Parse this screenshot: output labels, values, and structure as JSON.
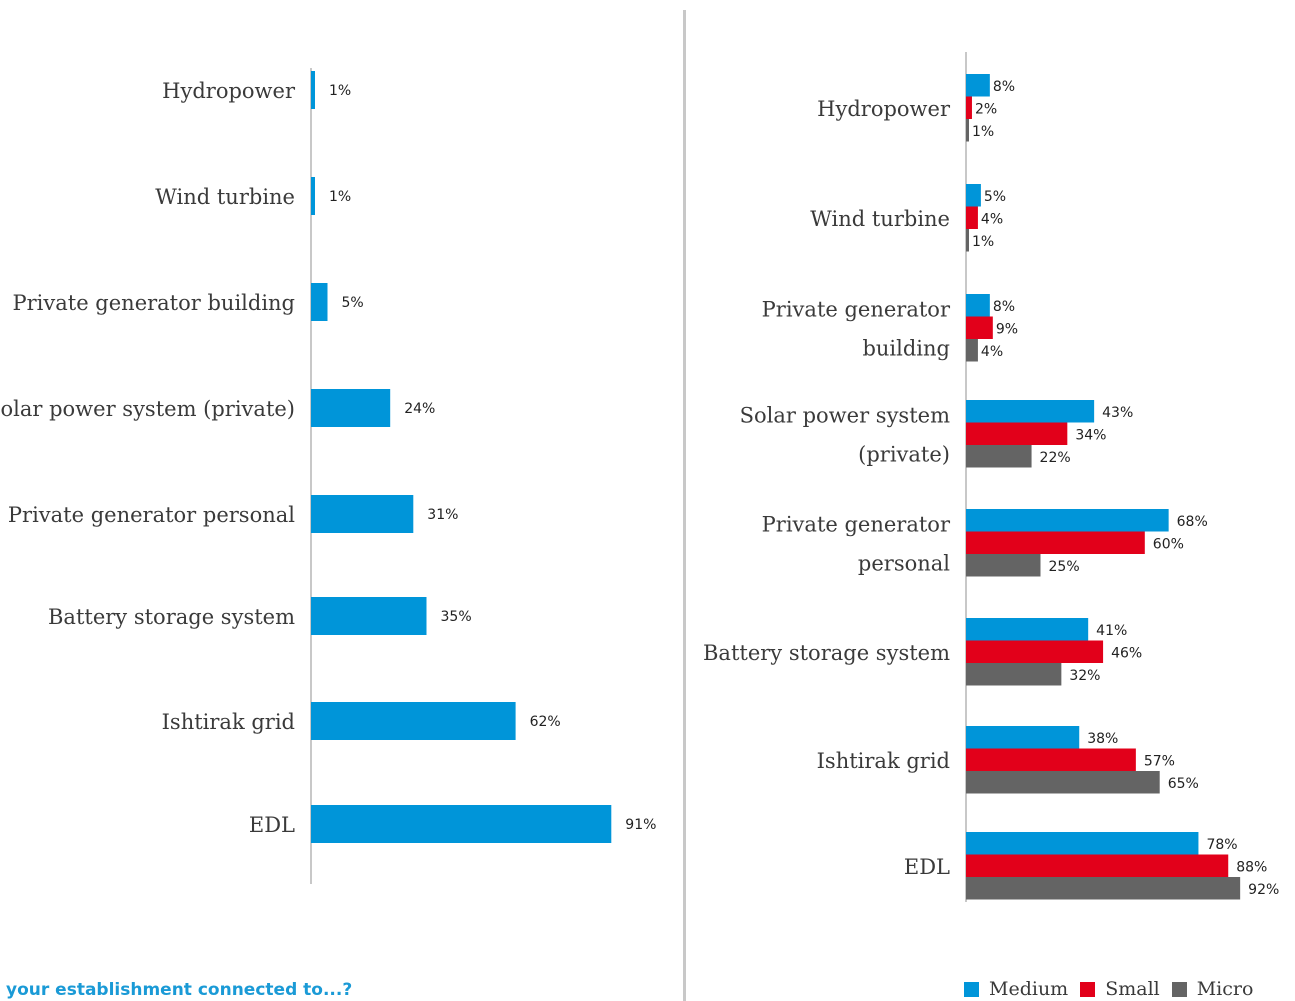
{
  "caption": "your establishment connected to...?",
  "colors": {
    "medium": "#0095d9",
    "small": "#e2001a",
    "micro": "#646464",
    "axis": "#c8c8c8"
  },
  "chart_data": [
    {
      "type": "bar",
      "orientation": "horizontal",
      "categories": [
        "Hydropower",
        "Wind turbine",
        "Private generator building",
        "Solar power system (private)",
        "Private generator personal",
        "Battery storage system",
        "Ishtirak grid",
        "EDL"
      ],
      "display_labels": [
        [
          "Hydropower"
        ],
        [
          "Wind turbine"
        ],
        [
          "Private generator building"
        ],
        [
          "Solar power system (private)"
        ],
        [
          "Private generator personal"
        ],
        [
          "Battery storage system"
        ],
        [
          "Ishtirak grid"
        ],
        [
          "EDL"
        ]
      ],
      "values": [
        1,
        1,
        5,
        24,
        31,
        35,
        62,
        91
      ],
      "value_labels": [
        "1%",
        "1%",
        "5%",
        "24%",
        "31%",
        "35%",
        "62%",
        "91%"
      ],
      "unit": "%"
    },
    {
      "type": "bar",
      "orientation": "horizontal",
      "categories": [
        "Hydropower",
        "Wind turbine",
        "Private generator building",
        "Solar power system (private)",
        "Private generator personal",
        "Battery storage system",
        "Ishtirak grid",
        "EDL"
      ],
      "display_labels": [
        [
          "Hydropower"
        ],
        [
          "Wind turbine"
        ],
        [
          "Private generator",
          "building"
        ],
        [
          "Solar power system",
          "(private)"
        ],
        [
          "Private generator",
          "personal"
        ],
        [
          "Battery storage system"
        ],
        [
          "Ishtirak grid"
        ],
        [
          "EDL"
        ]
      ],
      "series": [
        {
          "name": "Medium",
          "color": "#0095d9",
          "values": [
            8,
            5,
            8,
            43,
            68,
            41,
            38,
            78
          ],
          "value_labels": [
            "8%",
            "5%",
            "8%",
            "43%",
            "68%",
            "41%",
            "38%",
            "78%"
          ]
        },
        {
          "name": "Small",
          "color": "#e2001a",
          "values": [
            2,
            4,
            9,
            34,
            60,
            46,
            57,
            88
          ],
          "value_labels": [
            "2%",
            "4%",
            "9%",
            "34%",
            "60%",
            "46%",
            "57%",
            "88%"
          ]
        },
        {
          "name": "Micro",
          "color": "#646464",
          "values": [
            1,
            1,
            4,
            22,
            25,
            32,
            65,
            92
          ],
          "value_labels": [
            "1%",
            "1%",
            "4%",
            "22%",
            "25%",
            "32%",
            "65%",
            "92%"
          ]
        }
      ],
      "legend": {
        "position": "bottom",
        "labels": [
          "Medium",
          "Small",
          "Micro"
        ]
      },
      "unit": "%"
    }
  ]
}
